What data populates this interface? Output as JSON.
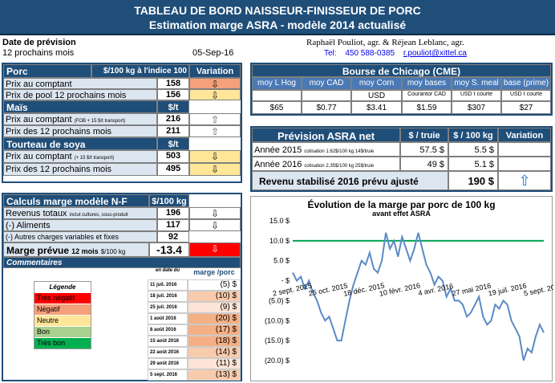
{
  "title": {
    "line1": "TABLEAU DE BORD NAISSEUR-FINISSEUR DE PORC",
    "line2": "Estimation marge ASRA - modèle 2014 actualisé"
  },
  "info": {
    "date_label": "Date de prévision",
    "period": "12 prochains mois",
    "date": "05-Sep-16",
    "authors": "Raphaël Pouliot, agr.   &   Réjean Leblanc, agr.",
    "tel_label": "Tel:",
    "tel": "450 588-0385",
    "email": "r.pouliot@xittel.ca"
  },
  "porc": {
    "header": "Porc",
    "unit": "$/100 kg à l'indice 100",
    "variation": "Variation",
    "rows": [
      {
        "label": "Prix au comptant",
        "value": "158",
        "arrow": "⇩"
      },
      {
        "label": "Prix de pool 12 prochains mois",
        "value": "156",
        "arrow": "⇩"
      }
    ]
  },
  "mais": {
    "header": "Maïs",
    "unit": "$/t",
    "rows": [
      {
        "label": "Prix au comptant",
        "note": "(FOB + 15 $/t transport)",
        "value": "216",
        "arrow": "⇧"
      },
      {
        "label": "Prix des 12 prochains mois",
        "note": "",
        "value": "211",
        "arrow": "⇧"
      }
    ]
  },
  "tourteau": {
    "header": "Tourteau de soya",
    "unit": "$/t",
    "rows": [
      {
        "label": "Prix au comptant",
        "note": "(+ 15 $/t transport)",
        "value": "503",
        "arrow": "⇩"
      },
      {
        "label": "Prix des 12 prochains mois",
        "note": "",
        "value": "495",
        "arrow": "⇩"
      }
    ]
  },
  "calculs": {
    "header": "Calculs marge  modèle N-F",
    "unit": "$/100 kg",
    "rows": [
      {
        "label": "Revenus totaux",
        "note": "inclut cultures, sous-produit",
        "value": "196",
        "arrow": "⇩"
      },
      {
        "label": "(-) Aliments",
        "note": "",
        "value": "117",
        "arrow": "⇩"
      },
      {
        "label": "(-) Autres charges variables et fixes",
        "note": "",
        "value": "92",
        "arrow": ""
      }
    ],
    "marge_label": "Marge prévue",
    "marge_note": "12 mois",
    "marge_unit": "$/100 kg",
    "marge_value": "-13.4",
    "marge_arrow": "⇩",
    "comments": "Commentaires"
  },
  "legend": {
    "title": "Légende",
    "items": [
      {
        "label": "Très négatif",
        "color": "#ff0000"
      },
      {
        "label": "Négatif",
        "color": "#f4a07a"
      },
      {
        "label": "Neutre",
        "color": "#ffe699"
      },
      {
        "label": "Bon",
        "color": "#a9d08e"
      },
      {
        "label": "Très bon",
        "color": "#00b050"
      }
    ]
  },
  "history": {
    "col_date": "en date du",
    "col_marge": "marge /porc",
    "rows": [
      {
        "date": "11 juil. 2016",
        "value": "(5) $",
        "color": "#ffffff"
      },
      {
        "date": "18 juil. 2016",
        "value": "(10) $",
        "color": "#f8cbad"
      },
      {
        "date": "25 juil. 2016",
        "value": "(9) $",
        "color": "#fce4d6"
      },
      {
        "date": "1 août 2016",
        "value": "(20) $",
        "color": "#f4b084"
      },
      {
        "date": "8 août 2016",
        "value": "(17) $",
        "color": "#f4b084"
      },
      {
        "date": "15 août 2016",
        "value": "(18) $",
        "color": "#f4b084"
      },
      {
        "date": "22 août 2016",
        "value": "(14) $",
        "color": "#f8cbad"
      },
      {
        "date": "29 août 2016",
        "value": "(11) $",
        "color": "#fce4d6"
      },
      {
        "date": "5 sept. 2016",
        "value": "(13) $",
        "color": "#f8cbad"
      }
    ]
  },
  "bourse": {
    "header": "Bourse de Chicago (CME)",
    "cols": [
      {
        "name": "moy L Hog",
        "unit": "",
        "value": "$65"
      },
      {
        "name": "moy CAD",
        "unit": "",
        "value": "$0.77"
      },
      {
        "name": "moy Corn",
        "unit": "USD",
        "value": "$3.41"
      },
      {
        "name": "moy bases",
        "unit": "Courantor CAD",
        "value": "$1.59"
      },
      {
        "name": "moy S. meal",
        "unit": "USD t courte",
        "value": "$307"
      },
      {
        "name": "base (prime)",
        "unit": "USD t courte",
        "value": "$27"
      }
    ]
  },
  "asra": {
    "header": "Prévision ASRA net",
    "col1": "$ / truie",
    "col2": "$ / 100 kg",
    "col3": "Variation",
    "rows": [
      {
        "label": "Année 2015",
        "note": "cotisation 1.62$/100 kg 14$/truie",
        "v1": "57.5  $",
        "v2": "5.5  $"
      },
      {
        "label": "Année 2016",
        "note": "cotisation 2.35$/100 kg 25$/truie",
        "v1": "49  $",
        "v2": "5.1  $"
      }
    ],
    "revenu_label": "Revenu stabilisé 2016 prévu ajusté",
    "revenu_value": "190  $",
    "revenu_arrow": "⇧"
  },
  "chart_data": {
    "type": "line",
    "title": "Évolution de la marge par porc de 100 kg",
    "subtitle": "avant effet ASRA",
    "yticks": [
      "15.0 $",
      "10.0 $",
      "5.0 $",
      "-  $",
      "(5.0) $",
      "(10.0) $",
      "(15.0) $",
      "(20.0) $"
    ],
    "ylim": [
      -20,
      15
    ],
    "xticks": [
      "2 sept. 2015",
      "25 oct. 2015",
      "18 déc. 2015",
      "10 févr. 2016",
      "4 avr. 2016",
      "27 mai 2016",
      "19 juil. 2016",
      "5 sept. 2016"
    ],
    "reference_line": {
      "value": 10,
      "color": "#00a651"
    },
    "series": [
      {
        "color": "#5b8ac6",
        "values": [
          2,
          0,
          1,
          -2,
          0,
          -3,
          -5,
          -8,
          -10,
          -9,
          -12,
          -15,
          -15,
          -10,
          -5,
          -1,
          2,
          5,
          4,
          7,
          3,
          2,
          5,
          12,
          8,
          10,
          6,
          11,
          8,
          5,
          8,
          12,
          8,
          4,
          2,
          -1,
          1,
          0,
          -4,
          -2,
          -5,
          -5,
          -6,
          -9,
          -8,
          -6,
          -4,
          -9,
          -11,
          -10,
          -6,
          -7,
          -5,
          -6,
          -10,
          -12,
          -14,
          -20,
          -17,
          -18,
          -14,
          -11,
          -13
        ]
      }
    ]
  }
}
